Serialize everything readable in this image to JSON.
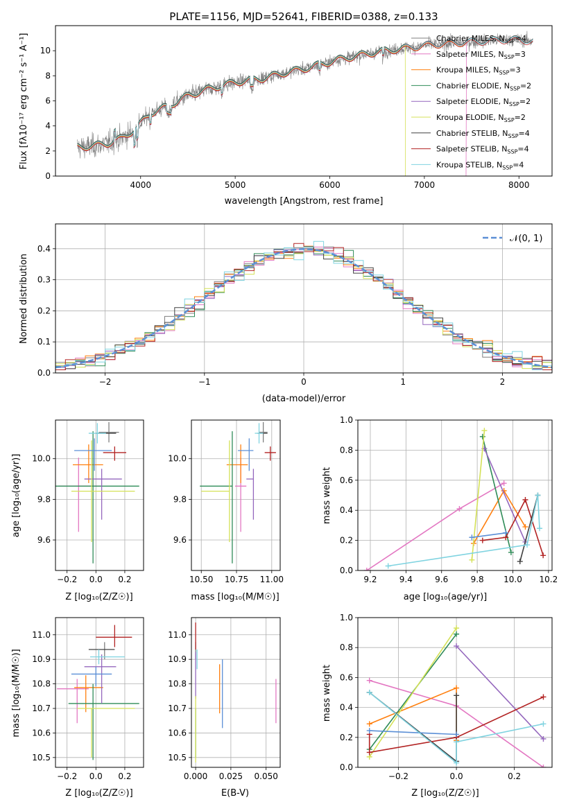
{
  "figure_title": "PLATE=1156, MJD=52641, FIBERID=0388, z=0.133",
  "colors": {
    "Chabrier MILES": "#7f7f7f",
    "Salpeter MILES": "#e377c2",
    "Kroupa MILES": "#ff7f0e",
    "Chabrier ELODIE": "#2e8b57",
    "Salpeter ELODIE": "#9467bd",
    "Kroupa ELODIE": "#d4e157",
    "Chabrier STELIB": "#404040",
    "Salpeter STELIB": "#b22222",
    "Kroupa STELIB": "#7fd3e0",
    "normal": "#5b8fd6"
  },
  "chart_data": [
    {
      "id": "spectrum",
      "type": "line",
      "title": "PLATE=1156, MJD=52641, FIBERID=0388, z=0.133",
      "xlabel": "wavelength [Angstrom, rest frame]",
      "ylabel": "Flux [fλ10⁻¹⁷ erg cm⁻² s⁻¹ A⁻¹]",
      "xlim": [
        3100,
        8350
      ],
      "ylim": [
        0,
        12
      ],
      "xticks": [
        4000,
        5000,
        6000,
        7000,
        8000
      ],
      "yticks": [
        0,
        2,
        4,
        6,
        8,
        10
      ],
      "grid": false,
      "legend_position": "right",
      "continuum": [
        [
          3330,
          2.3
        ],
        [
          3500,
          2.4
        ],
        [
          3650,
          2.6
        ],
        [
          3800,
          3.0
        ],
        [
          3950,
          3.8
        ],
        [
          4100,
          5.0
        ],
        [
          4300,
          5.6
        ],
        [
          4500,
          6.4
        ],
        [
          4700,
          6.9
        ],
        [
          4900,
          7.3
        ],
        [
          5100,
          7.6
        ],
        [
          5300,
          7.8
        ],
        [
          5500,
          8.2
        ],
        [
          5700,
          8.5
        ],
        [
          5900,
          8.9
        ],
        [
          6100,
          9.3
        ],
        [
          6300,
          9.6
        ],
        [
          6500,
          9.9
        ],
        [
          6700,
          10.1
        ],
        [
          6900,
          10.3
        ],
        [
          7100,
          10.5
        ],
        [
          7300,
          10.6
        ],
        [
          7500,
          10.7
        ],
        [
          7700,
          10.8
        ],
        [
          7900,
          10.9
        ],
        [
          8100,
          10.8
        ]
      ],
      "series": [
        {
          "name": "Chabrier MILES",
          "legend": "Chabrier MILES, N_SSP=4"
        },
        {
          "name": "Salpeter MILES",
          "legend": "Salpeter MILES, N_SSP=3"
        },
        {
          "name": "Kroupa MILES",
          "legend": "Kroupa MILES, N_SSP=3"
        },
        {
          "name": "Chabrier ELODIE",
          "legend": "Chabrier ELODIE, N_SSP=2"
        },
        {
          "name": "Salpeter ELODIE",
          "legend": "Salpeter ELODIE, N_SSP=2"
        },
        {
          "name": "Kroupa ELODIE",
          "legend": "Kroupa ELODIE, N_SSP=2"
        },
        {
          "name": "Chabrier STELIB",
          "legend": "Chabrier STELIB, N_SSP=4"
        },
        {
          "name": "Salpeter STELIB",
          "legend": "Salpeter STELIB, N_SSP=4"
        },
        {
          "name": "Kroupa STELIB",
          "legend": "Kroupa STELIB, N_SSP=4"
        }
      ]
    },
    {
      "id": "residuals",
      "type": "histogram",
      "xlabel": "(data-model)/error",
      "ylabel": "Normed distribution",
      "xlim": [
        -2.5,
        2.5
      ],
      "ylim": [
        0,
        0.48
      ],
      "xticks": [
        -2,
        -1,
        0,
        1,
        2
      ],
      "yticks": [
        0.0,
        0.1,
        0.2,
        0.3,
        0.4
      ],
      "grid": true,
      "legend": "𝒩(0, 1)",
      "legend_position": "top-right",
      "bin_width": 0.1
    },
    {
      "id": "age-z",
      "type": "errorbar",
      "xlabel": "Z [log₁₀(Z/Z☉)]",
      "ylabel": "age  [log₁₀(age/yr)]",
      "xlim": [
        -0.28,
        0.33
      ],
      "ylim": [
        9.45,
        10.19
      ],
      "xticks": [
        -0.2,
        0.0,
        0.2
      ],
      "yticks": [
        9.6,
        9.8,
        10.0
      ],
      "grid": true,
      "points": [
        {
          "series": "Chabrier MILES",
          "x": 0.09,
          "xerr": [
            0.07,
            0.07
          ],
          "y": 10.13,
          "yerr": [
            0.05,
            0.05
          ]
        },
        {
          "series": "Salpeter MILES",
          "x": -0.12,
          "xerr": [
            0.14,
            0.16
          ],
          "y": 9.865,
          "yerr": [
            0.225,
            0.14
          ]
        },
        {
          "series": "Kroupa MILES",
          "x": -0.05,
          "xerr": [
            0.11,
            0.1
          ],
          "y": 9.97,
          "yerr": [
            0.09,
            0.1
          ]
        },
        {
          "series": "Chabrier ELODIE",
          "x": -0.02,
          "xerr": [
            0.28,
            0.32
          ],
          "y": 9.865,
          "yerr": [
            0.38,
            0.27
          ]
        },
        {
          "series": "Salpeter ELODIE",
          "x": 0.04,
          "xerr": [
            0.12,
            0.14
          ],
          "y": 9.9,
          "yerr": [
            0.2,
            0.05
          ]
        },
        {
          "series": "Kroupa ELODIE",
          "x": -0.03,
          "xerr": [
            0.14,
            0.3
          ],
          "y": 9.84,
          "yerr": [
            0.25,
            0.25
          ]
        },
        {
          "series": "Chabrier STELIB",
          "x": 0.08,
          "xerr": [
            0.08,
            0.06
          ],
          "y": 10.125,
          "yerr": [
            0.0,
            0.0
          ]
        },
        {
          "series": "Salpeter STELIB",
          "x": 0.13,
          "xerr": [
            0.08,
            0.08
          ],
          "y": 10.03,
          "yerr": [
            0.04,
            0.03
          ]
        },
        {
          "series": "Kroupa STELIB",
          "x": 0.01,
          "xerr": [
            0.06,
            0.06
          ],
          "y": 10.125,
          "yerr": [
            0.05,
            0.05
          ]
        },
        {
          "series": "normal",
          "x": -0.01,
          "xerr": [
            0.14,
            0.12
          ],
          "y": 10.04,
          "yerr": [
            0.1,
            0.06
          ]
        }
      ]
    },
    {
      "id": "age-mass",
      "type": "errorbar",
      "xlabel": "mass [log₁₀(M/M☉)]",
      "ylabel": "",
      "xlim": [
        10.43,
        11.06
      ],
      "ylim": [
        9.45,
        10.19
      ],
      "xticks": [
        10.5,
        10.75,
        11.0
      ],
      "yticks": [
        9.6,
        9.8,
        10.0
      ],
      "grid": true,
      "points": [
        {
          "series": "Chabrier MILES",
          "x": 10.94,
          "xerr": [
            0.03,
            0.03
          ],
          "y": 10.13,
          "yerr": [
            0.05,
            0.05
          ]
        },
        {
          "series": "Salpeter MILES",
          "x": 10.78,
          "xerr": [
            0.04,
            0.04
          ],
          "y": 9.865,
          "yerr": [
            0.225,
            0.14
          ]
        },
        {
          "series": "Kroupa MILES",
          "x": 10.78,
          "xerr": [
            0.1,
            0.05
          ],
          "y": 9.97,
          "yerr": [
            0.09,
            0.1
          ]
        },
        {
          "series": "Chabrier ELODIE",
          "x": 10.72,
          "xerr": [
            0.23,
            0.0
          ],
          "y": 9.865,
          "yerr": [
            0.38,
            0.27
          ]
        },
        {
          "series": "Salpeter ELODIE",
          "x": 10.87,
          "xerr": [
            0.05,
            0.0
          ],
          "y": 9.9,
          "yerr": [
            0.2,
            0.05
          ]
        },
        {
          "series": "Kroupa ELODIE",
          "x": 10.7,
          "xerr": [
            0.2,
            0.0
          ],
          "y": 9.84,
          "yerr": [
            0.25,
            0.25
          ]
        },
        {
          "series": "Chabrier STELIB",
          "x": 10.94,
          "xerr": [
            0.04,
            0.03
          ],
          "y": 10.125,
          "yerr": [
            0.0,
            0.0
          ]
        },
        {
          "series": "Salpeter STELIB",
          "x": 10.99,
          "xerr": [
            0.04,
            0.04
          ],
          "y": 10.03,
          "yerr": [
            0.04,
            0.03
          ]
        },
        {
          "series": "Kroupa STELIB",
          "x": 10.91,
          "xerr": [
            0.03,
            0.03
          ],
          "y": 10.125,
          "yerr": [
            0.05,
            0.05
          ]
        },
        {
          "series": "normal",
          "x": 10.84,
          "xerr": [
            0.08,
            0.03
          ],
          "y": 10.04,
          "yerr": [
            0.1,
            0.06
          ]
        }
      ]
    },
    {
      "id": "weight-age",
      "type": "line",
      "xlabel": "age  [log₁₀(age/yr)]",
      "ylabel": "mass weight",
      "xlim": [
        9.13,
        10.22
      ],
      "ylim": [
        0,
        1.0
      ],
      "xticks": [
        9.2,
        9.4,
        9.6,
        9.8,
        10.0,
        10.2
      ],
      "yticks": [
        0.0,
        0.2,
        0.4,
        0.6,
        0.8,
        1.0
      ],
      "grid": true,
      "series": [
        {
          "name": "Salpeter MILES",
          "x": [
            9.18,
            9.7,
            9.95
          ],
          "y": [
            0.0,
            0.41,
            0.58
          ]
        },
        {
          "name": "Kroupa MILES",
          "x": [
            9.78,
            9.95,
            10.07
          ],
          "y": [
            0.18,
            0.53,
            0.29
          ]
        },
        {
          "name": "Chabrier ELODIE",
          "x": [
            9.83,
            9.99
          ],
          "y": [
            0.89,
            0.12
          ]
        },
        {
          "name": "Salpeter ELODIE",
          "x": [
            9.84,
            10.07
          ],
          "y": [
            0.81,
            0.19
          ]
        },
        {
          "name": "Kroupa ELODIE",
          "x": [
            9.77,
            9.84
          ],
          "y": [
            0.07,
            0.93
          ]
        },
        {
          "name": "Salpeter STELIB",
          "x": [
            9.83,
            9.96,
            10.07,
            10.17
          ],
          "y": [
            0.2,
            0.22,
            0.47,
            0.1
          ]
        },
        {
          "name": "normal",
          "x": [
            9.77,
            9.96
          ],
          "y": [
            0.22,
            0.25
          ]
        },
        {
          "name": "Chabrier STELIB",
          "x": [
            10.04,
            10.14
          ],
          "y": [
            0.06,
            0.5
          ]
        },
        {
          "name": "Kroupa STELIB",
          "x": [
            9.3,
            10.08,
            10.14,
            10.15
          ],
          "y": [
            0.03,
            0.17,
            0.5,
            0.28
          ]
        }
      ]
    },
    {
      "id": "mass-z",
      "type": "errorbar",
      "xlabel": "Z [log₁₀(Z/Z☉)]",
      "ylabel": "mass [log₁₀(M/M☉)]",
      "xlim": [
        -0.28,
        0.33
      ],
      "ylim": [
        10.46,
        11.07
      ],
      "xticks": [
        -0.2,
        0.0,
        0.2
      ],
      "yticks": [
        10.5,
        10.6,
        10.7,
        10.8,
        10.9,
        11.0
      ],
      "grid": true,
      "points": [
        {
          "series": "Chabrier MILES",
          "x": 0.06,
          "xerr": [
            0.0,
            0.0
          ],
          "y": 10.94,
          "yerr": [
            0.04,
            0.03
          ]
        },
        {
          "series": "Salpeter MILES",
          "x": -0.13,
          "xerr": [
            0.14,
            0.08
          ],
          "y": 10.78,
          "yerr": [
            0.14,
            0.04
          ]
        },
        {
          "series": "Kroupa MILES",
          "x": -0.07,
          "xerr": [
            0.08,
            0.12
          ],
          "y": 10.785,
          "yerr": [
            0.1,
            0.05
          ]
        },
        {
          "series": "Chabrier ELODIE",
          "x": -0.02,
          "xerr": [
            0.17,
            0.32
          ],
          "y": 10.72,
          "yerr": [
            0.23,
            0.08
          ]
        },
        {
          "series": "Salpeter ELODIE",
          "x": 0.04,
          "xerr": [
            0.12,
            0.1
          ],
          "y": 10.87,
          "yerr": [
            0.15,
            0.05
          ]
        },
        {
          "series": "Kroupa ELODIE",
          "x": -0.03,
          "xerr": [
            0.1,
            0.3
          ],
          "y": 10.7,
          "yerr": [
            0.2,
            0.0
          ]
        },
        {
          "series": "Chabrier STELIB",
          "x": 0.05,
          "xerr": [
            0.1,
            0.08
          ],
          "y": 10.94,
          "yerr": [
            0.0,
            0.0
          ]
        },
        {
          "series": "Salpeter STELIB",
          "x": 0.13,
          "xerr": [
            0.13,
            0.12
          ],
          "y": 10.99,
          "yerr": [
            0.04,
            0.05
          ]
        },
        {
          "series": "Kroupa STELIB",
          "x": 0.02,
          "xerr": [
            0.06,
            0.18
          ],
          "y": 10.91,
          "yerr": [
            0.03,
            0.03
          ]
        },
        {
          "series": "normal",
          "x": 0.0,
          "xerr": [
            0.17,
            0.11
          ],
          "y": 10.84,
          "yerr": [
            0.05,
            0.03
          ]
        }
      ]
    },
    {
      "id": "mass-ebv",
      "type": "errorbar",
      "xlabel": "E(B-V)",
      "ylabel": "",
      "xlim": [
        -0.003,
        0.06
      ],
      "ylim": [
        10.46,
        11.07
      ],
      "xticks": [
        0.0,
        0.025,
        0.05
      ],
      "yticks": [
        10.5,
        10.6,
        10.7,
        10.8,
        10.9,
        11.0
      ],
      "grid": true,
      "points": [
        {
          "series": "Chabrier MILES",
          "x": 0.0,
          "xerr": [
            0.0,
            0.0
          ],
          "y": 10.94,
          "yerr": [
            0.04,
            0.03
          ]
        },
        {
          "series": "Salpeter MILES",
          "x": 0.057,
          "xerr": [
            0.0,
            0.0
          ],
          "y": 10.73,
          "yerr": [
            0.09,
            0.09
          ]
        },
        {
          "series": "Kroupa MILES",
          "x": 0.017,
          "xerr": [
            0.0,
            0.0
          ],
          "y": 10.78,
          "yerr": [
            0.1,
            0.1
          ]
        },
        {
          "series": "Chabrier ELODIE",
          "x": 0.0,
          "xerr": [
            0.0,
            0.0
          ],
          "y": 10.6,
          "yerr": [
            0.1,
            0.1
          ]
        },
        {
          "series": "Salpeter ELODIE",
          "x": 0.0,
          "xerr": [
            0.0,
            0.0
          ],
          "y": 10.87,
          "yerr": [
            0.13,
            0.06
          ]
        },
        {
          "series": "Kroupa ELODIE",
          "x": 0.0,
          "xerr": [
            0.0,
            0.0
          ],
          "y": 10.63,
          "yerr": [
            0.15,
            0.12
          ]
        },
        {
          "series": "Chabrier STELIB",
          "x": 0.0,
          "xerr": [
            0.0,
            0.0
          ],
          "y": 10.94,
          "yerr": [
            0.0,
            0.0
          ]
        },
        {
          "series": "Salpeter STELIB",
          "x": 0.0,
          "xerr": [
            0.0,
            0.0
          ],
          "y": 10.99,
          "yerr": [
            0.05,
            0.06
          ]
        },
        {
          "series": "Kroupa STELIB",
          "x": 0.001,
          "xerr": [
            0.0,
            0.0
          ],
          "y": 10.9,
          "yerr": [
            0.04,
            0.04
          ]
        },
        {
          "series": "normal",
          "x": 0.019,
          "xerr": [
            0.0,
            0.0
          ],
          "y": 10.76,
          "yerr": [
            0.14,
            0.14
          ]
        }
      ]
    },
    {
      "id": "weight-z",
      "type": "line",
      "xlabel": "Z [log₁₀(Z/Z☉)]",
      "ylabel": "mass weight",
      "xlim": [
        -0.34,
        0.33
      ],
      "ylim": [
        0,
        1.0
      ],
      "xticks": [
        -0.2,
        0.0,
        0.2
      ],
      "yticks": [
        0.0,
        0.2,
        0.4,
        0.6,
        0.8,
        1.0
      ],
      "grid": true,
      "series": [
        {
          "name": "Salpeter MILES",
          "x": [
            -0.3,
            0.0,
            0.3
          ],
          "y": [
            0.58,
            0.41,
            0.0
          ]
        },
        {
          "name": "Kroupa MILES",
          "x": [
            -0.3,
            0.0,
            0.0
          ],
          "y": [
            0.29,
            0.53,
            0.18
          ]
        },
        {
          "name": "Chabrier ELODIE",
          "x": [
            -0.3,
            0.0
          ],
          "y": [
            0.12,
            0.89
          ]
        },
        {
          "name": "Salpeter ELODIE",
          "x": [
            0.0,
            0.3
          ],
          "y": [
            0.81,
            0.19
          ]
        },
        {
          "name": "Kroupa ELODIE",
          "x": [
            -0.3,
            0.0
          ],
          "y": [
            0.07,
            0.93
          ]
        },
        {
          "name": "Chabrier STELIB",
          "x": [
            -0.3,
            0.0,
            0.0
          ],
          "y": [
            0.5,
            0.04,
            0.48
          ]
        },
        {
          "name": "Salpeter STELIB",
          "x": [
            -0.3,
            -0.3,
            0.0,
            0.3
          ],
          "y": [
            0.22,
            0.1,
            0.2,
            0.47
          ]
        },
        {
          "name": "normal",
          "x": [
            -0.3,
            0.0
          ],
          "y": [
            0.245,
            0.22
          ]
        },
        {
          "name": "Kroupa STELIB",
          "x": [
            -0.3,
            0.0,
            0.0,
            0.3
          ],
          "y": [
            0.5,
            0.03,
            0.17,
            0.29
          ]
        }
      ]
    }
  ]
}
